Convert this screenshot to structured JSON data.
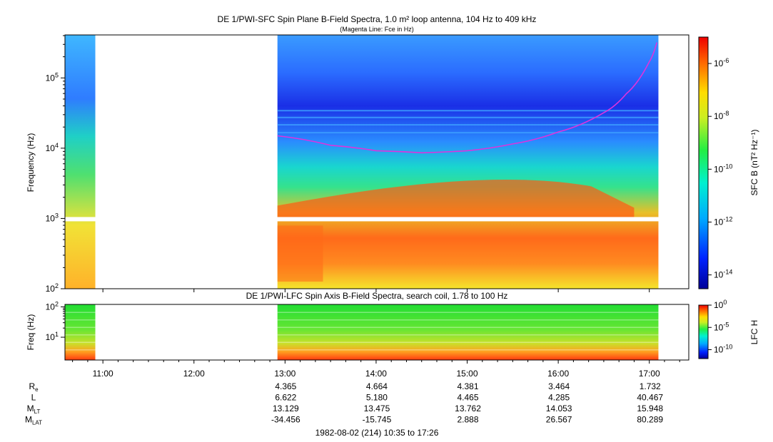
{
  "chart_data": [
    {
      "type": "heatmap",
      "title": "DE 1/PWI-SFC  Spin Plane B-Field Spectra, 1.0 m² loop antenna, 104 Hz to 409 kHz",
      "subtitle": "(Magenta Line: Fce in Hz)",
      "ylabel": "Frequency (Hz)",
      "y_scale": "log",
      "ylim": [
        100,
        409000
      ],
      "y_ticks": [
        {
          "value": 100,
          "base": "10",
          "exp": "2"
        },
        {
          "value": 1000,
          "base": "10",
          "exp": "3"
        },
        {
          "value": 10000,
          "base": "10",
          "exp": "4"
        },
        {
          "value": 100000,
          "base": "10",
          "exp": "5"
        }
      ],
      "colorbar_label": "SFC B (nT² Hz⁻¹)",
      "colorbar_ticks": [
        {
          "value": 1e-06,
          "base": "10",
          "exp": "-6"
        },
        {
          "value": 1e-08,
          "base": "10",
          "exp": "-8"
        },
        {
          "value": 1e-10,
          "base": "10",
          "exp": "-10"
        },
        {
          "value": 1e-12,
          "base": "10",
          "exp": "-12"
        },
        {
          "value": 1e-14,
          "base": "10",
          "exp": "-14"
        }
      ],
      "colorbar_range": [
        3e-15,
        1e-05
      ],
      "data_gaps": [
        [
          "10:55",
          "12:55"
        ]
      ],
      "fce_line": {
        "name": "Fce",
        "color": "#dd33dd",
        "points": [
          {
            "time": "12:55",
            "freq": 15000
          },
          {
            "time": "13:30",
            "freq": 11000
          },
          {
            "time": "14:00",
            "freq": 9200
          },
          {
            "time": "14:30",
            "freq": 8600
          },
          {
            "time": "15:00",
            "freq": 9200
          },
          {
            "time": "15:30",
            "freq": 11500
          },
          {
            "time": "16:00",
            "freq": 17000
          },
          {
            "time": "16:30",
            "freq": 32000
          },
          {
            "time": "16:45",
            "freq": 60000
          },
          {
            "time": "17:00",
            "freq": 170000
          },
          {
            "time": "17:05",
            "freq": 320000
          }
        ]
      }
    },
    {
      "type": "heatmap",
      "title": "DE 1/PWI-LFC  Spin Axis B-Field Spectra, search coil, 1.78 to 100 Hz",
      "ylabel": "Freq (Hz)",
      "y_scale": "log",
      "ylim": [
        1.78,
        120
      ],
      "y_ticks": [
        {
          "value": 10,
          "base": "10",
          "exp": "1"
        },
        {
          "value": 100,
          "base": "10",
          "exp": "2"
        }
      ],
      "colorbar_label": "LFC H",
      "colorbar_ticks": [
        {
          "value": 1,
          "base": "10",
          "exp": "0"
        },
        {
          "value": 1e-05,
          "base": "10",
          "exp": "-5"
        },
        {
          "value": 1e-10,
          "base": "10",
          "exp": "-10"
        }
      ],
      "colorbar_range": [
        1e-12,
        1
      ],
      "data_gaps": [
        [
          "10:55",
          "12:55"
        ]
      ]
    }
  ],
  "time_axis": {
    "start": "10:35",
    "end": "17:26",
    "tick_labels": [
      "11:00",
      "12:00",
      "13:00",
      "14:00",
      "15:00",
      "16:00",
      "17:00"
    ]
  },
  "ephemeris": {
    "rows": [
      {
        "label_main": "R",
        "label_sub": "e",
        "values": [
          "4.365",
          "4.664",
          "4.381",
          "3.464",
          "1.732"
        ]
      },
      {
        "label_main": "L",
        "label_sub": "",
        "values": [
          "6.622",
          "5.180",
          "4.465",
          "4.285",
          "40.467"
        ]
      },
      {
        "label_main": "M",
        "label_sub": "LT",
        "values": [
          "13.129",
          "13.475",
          "13.762",
          "14.053",
          "15.948"
        ]
      },
      {
        "label_main": "M",
        "label_sub": "LAT",
        "values": [
          "-34.456",
          "-15.745",
          "2.888",
          "26.567",
          "80.289"
        ]
      }
    ]
  },
  "footer": "1982-08-02 (214) 10:35 to 17:26"
}
